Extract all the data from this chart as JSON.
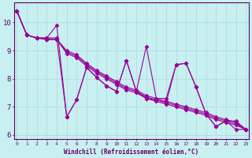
{
  "xlabel": "Windchill (Refroidissement éolien,°C)",
  "bg_color": "#c8f0f0",
  "line_color": "#990099",
  "grid_color": "#b0dede",
  "axis_color": "#660066",
  "series": [
    [
      10.4,
      9.55,
      9.45,
      9.45,
      9.9,
      6.65,
      7.25,
      8.4,
      8.05,
      7.75,
      7.55,
      8.65,
      7.55,
      9.15,
      7.3,
      7.3,
      8.5,
      8.55,
      7.7,
      6.75,
      6.3,
      6.5,
      6.5,
      6.2
    ],
    [
      10.4,
      9.55,
      9.45,
      9.45,
      9.45,
      6.65,
      7.25,
      8.4,
      8.05,
      7.75,
      7.55,
      8.65,
      7.55,
      7.3,
      7.25,
      7.15,
      8.5,
      8.55,
      7.7,
      6.75,
      6.3,
      6.5,
      6.2,
      6.2
    ],
    [
      10.4,
      9.55,
      9.45,
      9.4,
      9.4,
      9.0,
      8.85,
      8.55,
      8.3,
      8.1,
      7.9,
      7.7,
      7.6,
      7.4,
      7.3,
      7.2,
      7.1,
      7.0,
      6.9,
      6.8,
      6.65,
      6.55,
      6.45,
      6.2
    ],
    [
      10.4,
      9.55,
      9.45,
      9.4,
      9.4,
      8.95,
      8.8,
      8.5,
      8.25,
      8.05,
      7.85,
      7.65,
      7.55,
      7.35,
      7.25,
      7.15,
      7.05,
      6.95,
      6.85,
      6.75,
      6.6,
      6.5,
      6.4,
      6.2
    ],
    [
      10.4,
      9.55,
      9.45,
      9.4,
      9.4,
      8.9,
      8.75,
      8.45,
      8.2,
      8.0,
      7.8,
      7.6,
      7.5,
      7.3,
      7.2,
      7.1,
      7.0,
      6.9,
      6.8,
      6.7,
      6.55,
      6.45,
      6.35,
      6.2
    ]
  ],
  "xmin": 0,
  "xmax": 23,
  "ymin": 6.0,
  "ymax": 10.5,
  "yticks": [
    6,
    7,
    8,
    9,
    10
  ],
  "xticks": [
    0,
    1,
    2,
    3,
    4,
    5,
    6,
    7,
    8,
    9,
    10,
    11,
    12,
    13,
    14,
    15,
    16,
    17,
    18,
    19,
    20,
    21,
    22,
    23
  ],
  "marker": "D",
  "markersize": 2.5,
  "linewidth": 0.8
}
